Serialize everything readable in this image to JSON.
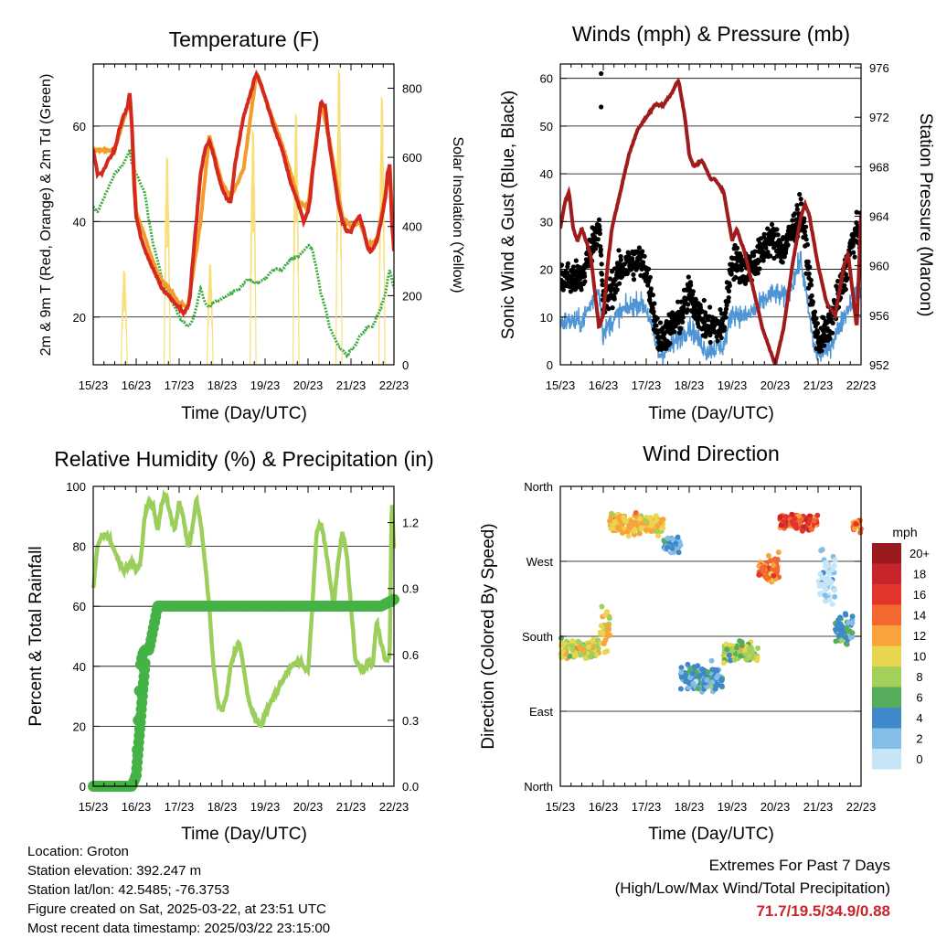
{
  "x_ticks": [
    "15/23",
    "16/23",
    "17/23",
    "18/23",
    "19/23",
    "20/23",
    "21/23",
    "22/23"
  ],
  "x_title": "Time (Day/UTC)",
  "colors": {
    "temp2m": "#d42a1e",
    "temp9m": "#f39b2b",
    "dewpoint": "#3daa3d",
    "solar": "#f7e07a",
    "wind": "#4f94d4",
    "gust": "#000000",
    "pressure": "#a01c1c",
    "rh": "#9bce5b",
    "precip": "#44b244",
    "extreme": "#c8242b"
  },
  "chart_data": [
    {
      "type": "line",
      "title": "Temperature (F)",
      "xlabel": "Time (Day/UTC)",
      "ylabel": "2m & 9m T (Red, Orange) & 2m Td (Green)",
      "ylabel_right": "Solar Insolation (Yellow)",
      "ylim": [
        10,
        73
      ],
      "ylim_right": [
        0,
        870
      ],
      "yticks": [
        20,
        40,
        60
      ],
      "yticks_right": [
        0,
        200,
        400,
        600,
        800
      ],
      "x_range_days": [
        0,
        7
      ],
      "series": [
        {
          "key": "t2",
          "x": [
            0,
            0.1,
            0.2,
            0.3,
            0.5,
            0.6,
            0.7,
            0.8,
            0.85,
            0.9,
            0.95,
            1.0,
            1.1,
            1.2,
            1.3,
            1.4,
            1.5,
            1.6,
            1.7,
            1.8,
            1.9,
            2.0,
            2.1,
            2.2,
            2.25,
            2.3,
            2.4,
            2.5,
            2.6,
            2.7,
            2.8,
            2.9,
            3.0,
            3.1,
            3.2,
            3.3,
            3.5,
            3.6,
            3.7,
            3.75,
            3.8,
            3.9,
            4.0,
            4.1,
            4.2,
            4.4,
            4.6,
            4.8,
            4.9,
            5.0,
            5.05,
            5.1,
            5.2,
            5.3,
            5.4,
            5.5,
            5.6,
            5.7,
            5.8,
            5.9,
            6.0,
            6.1,
            6.2,
            6.3,
            6.4,
            6.5,
            6.6,
            6.7,
            6.8,
            6.85,
            6.9,
            6.95,
            7.0
          ],
          "y": [
            55,
            50,
            50,
            52,
            55,
            59,
            62,
            64,
            67,
            60,
            48,
            41,
            37,
            34,
            32,
            30,
            28,
            26,
            25,
            24,
            23,
            22,
            21,
            22,
            24,
            30,
            40,
            50,
            55,
            57,
            54,
            50,
            47,
            45,
            44,
            52,
            62,
            65,
            68,
            70,
            71,
            69,
            66,
            63,
            60,
            55,
            48,
            43,
            40,
            42,
            45,
            50,
            57,
            65,
            64,
            56,
            50,
            44,
            40,
            38,
            38,
            40,
            41,
            38,
            34,
            34,
            36,
            40,
            45,
            50,
            52,
            40,
            34
          ]
        },
        {
          "key": "t9",
          "x": [
            0,
            0.5,
            0.8,
            0.85,
            0.9,
            1.0,
            1.5,
            2.0,
            2.2,
            2.5,
            2.7,
            3.0,
            3.2,
            3.5,
            3.8,
            4.0,
            4.4,
            4.8,
            5.0,
            5.3,
            5.5,
            5.8,
            6.0,
            6.2,
            6.4,
            6.6,
            6.8,
            6.9,
            7.0
          ],
          "y": [
            55,
            55,
            64,
            67,
            60,
            42,
            29,
            23,
            22,
            40,
            58,
            48,
            45,
            51,
            71,
            66,
            56,
            44,
            43,
            65,
            57,
            41,
            39,
            40,
            35,
            36,
            46,
            52,
            35
          ]
        },
        {
          "key": "td",
          "x": [
            0,
            0.1,
            0.2,
            0.3,
            0.5,
            0.7,
            0.8,
            0.85,
            0.9,
            1.0,
            1.1,
            1.2,
            1.3,
            1.4,
            1.5,
            1.6,
            1.7,
            1.8,
            1.9,
            2.0,
            2.1,
            2.2,
            2.3,
            2.4,
            2.5,
            2.6,
            2.7,
            2.8,
            3.0,
            3.2,
            3.4,
            3.5,
            3.6,
            3.8,
            4.0,
            4.2,
            4.4,
            4.6,
            4.8,
            4.9,
            5.0,
            5.1,
            5.2,
            5.3,
            5.4,
            5.5,
            5.6,
            5.7,
            5.8,
            5.9,
            6.0,
            6.1,
            6.2,
            6.3,
            6.4,
            6.5,
            6.6,
            6.7,
            6.8,
            6.9,
            7.0
          ],
          "y": [
            43,
            42,
            44,
            46,
            50,
            52,
            54,
            55,
            52,
            50,
            48,
            46,
            40,
            35,
            32,
            28,
            26,
            24,
            22,
            20,
            19,
            18,
            19,
            22,
            26,
            23,
            22,
            23,
            24,
            25,
            26,
            27,
            28,
            27,
            28,
            30,
            30,
            32,
            33,
            34,
            35,
            34,
            30,
            25,
            22,
            18,
            16,
            14,
            13,
            12,
            13,
            14,
            16,
            17,
            18,
            18,
            20,
            22,
            25,
            30,
            26
          ]
        }
      ],
      "solar": {
        "days": 7,
        "peaks_wm2": [
          280,
          620,
          300,
          700,
          750,
          880,
          800
        ],
        "center_frac": 0.72,
        "halfwidth_days": 0.07
      }
    },
    {
      "type": "scatter",
      "title": "Winds (mph) & Pressure (mb)",
      "xlabel": "Time (Day/UTC)",
      "ylabel": "Sonic Wind & Gust (Blue, Black)",
      "ylabel_right": "Station Pressure (Maroon)",
      "ylim": [
        0,
        63
      ],
      "ylim_right": [
        952,
        976.3
      ],
      "yticks": [
        0,
        10,
        20,
        30,
        40,
        50,
        60
      ],
      "yticks_right": [
        952,
        956,
        960,
        964,
        968,
        972,
        976
      ],
      "x_range_days": [
        0,
        7
      ],
      "wind_mean": {
        "x": [
          0,
          0.5,
          0.9,
          1.0,
          1.1,
          1.4,
          1.8,
          2.0,
          2.3,
          2.6,
          2.8,
          3.0,
          3.4,
          3.8,
          4.0,
          4.3,
          4.6,
          4.8,
          5.0,
          5.2,
          5.4,
          5.6,
          5.7,
          5.9,
          6.0,
          6.2,
          6.4,
          6.6,
          6.8,
          7.0
        ],
        "y": [
          9,
          9,
          16,
          6,
          8,
          11,
          13,
          12,
          2,
          4,
          6,
          8,
          3,
          4,
          11,
          10,
          12,
          14,
          15,
          14,
          17,
          22,
          16,
          4,
          2,
          3,
          6,
          10,
          14,
          16
        ]
      },
      "gust_mean": {
        "x": [
          0,
          0.5,
          0.9,
          1.0,
          1.1,
          1.4,
          1.8,
          2.0,
          2.3,
          2.6,
          2.8,
          3.0,
          3.4,
          3.8,
          4.0,
          4.3,
          4.6,
          4.8,
          5.0,
          5.2,
          5.4,
          5.6,
          5.7,
          5.9,
          6.0,
          6.2,
          6.4,
          6.6,
          6.8,
          7.0
        ],
        "y": [
          18,
          18,
          30,
          12,
          14,
          20,
          22,
          20,
          5,
          8,
          10,
          15,
          8,
          8,
          22,
          20,
          22,
          26,
          26,
          24,
          28,
          32,
          26,
          10,
          5,
          7,
          12,
          18,
          26,
          28
        ]
      },
      "gust_outliers": [
        {
          "x": 0.95,
          "y": 61
        },
        {
          "x": 0.95,
          "y": 54
        }
      ],
      "pressure": {
        "x": [
          0,
          0.1,
          0.2,
          0.3,
          0.4,
          0.5,
          0.6,
          0.7,
          0.8,
          0.9,
          1.0,
          1.1,
          1.2,
          1.4,
          1.6,
          1.8,
          2.0,
          2.2,
          2.4,
          2.6,
          2.75,
          2.8,
          2.9,
          3.0,
          3.1,
          3.3,
          3.5,
          3.6,
          3.8,
          4.0,
          4.1,
          4.3,
          4.5,
          4.7,
          4.9,
          5.0,
          5.2,
          5.4,
          5.6,
          5.7,
          5.8,
          5.9,
          6.0,
          6.2,
          6.4,
          6.5,
          6.6,
          6.7,
          6.8,
          6.9,
          7.0
        ],
        "y": [
          963,
          965,
          966,
          963,
          962,
          963,
          962,
          961,
          958,
          955,
          956,
          960,
          963,
          966,
          969,
          971,
          972,
          973,
          973,
          974,
          975,
          974,
          972,
          969,
          968,
          968.5,
          967,
          967,
          966,
          962,
          963,
          961,
          958,
          955,
          953,
          952,
          955,
          960,
          964,
          965,
          964,
          962,
          960,
          957,
          956,
          958,
          960,
          961,
          958,
          955,
          964
        ]
      }
    },
    {
      "type": "line",
      "title": "Relative Humidity (%) & Precipitation (in)",
      "xlabel": "Time (Day/UTC)",
      "ylabel": "Percent & Total Rainfall",
      "ylim": [
        0,
        100
      ],
      "ylim_right": [
        0,
        1.365
      ],
      "yticks": [
        0,
        20,
        40,
        60,
        80,
        100
      ],
      "yticks_right": [
        0.0,
        0.3,
        0.6,
        0.9,
        1.2
      ],
      "yticklabels_right": [
        "0.0",
        "0.3",
        "0.6",
        "0.9",
        "1.2"
      ],
      "x_range_days": [
        0,
        7
      ],
      "series": [
        {
          "key": "rh",
          "x": [
            0,
            0.1,
            0.2,
            0.3,
            0.4,
            0.5,
            0.6,
            0.7,
            0.8,
            0.9,
            1.0,
            1.1,
            1.2,
            1.3,
            1.4,
            1.5,
            1.6,
            1.7,
            1.8,
            1.9,
            2.0,
            2.1,
            2.2,
            2.3,
            2.4,
            2.5,
            2.6,
            2.7,
            2.8,
            2.9,
            3.0,
            3.1,
            3.2,
            3.3,
            3.4,
            3.5,
            3.6,
            3.7,
            3.8,
            3.9,
            4.0,
            4.2,
            4.4,
            4.6,
            4.8,
            5.0,
            5.1,
            5.2,
            5.3,
            5.4,
            5.5,
            5.6,
            5.7,
            5.8,
            5.9,
            6.0,
            6.1,
            6.2,
            6.3,
            6.4,
            6.5,
            6.6,
            6.7,
            6.8,
            6.9,
            6.95,
            7.0
          ],
          "y": [
            66,
            80,
            84,
            84,
            82,
            78,
            75,
            72,
            73,
            75,
            72,
            75,
            90,
            95,
            93,
            85,
            95,
            97,
            90,
            85,
            95,
            90,
            80,
            85,
            96,
            88,
            75,
            60,
            40,
            28,
            25,
            30,
            40,
            45,
            48,
            40,
            30,
            25,
            22,
            20,
            24,
            30,
            35,
            40,
            42,
            38,
            60,
            85,
            88,
            80,
            70,
            60,
            75,
            85,
            78,
            60,
            42,
            40,
            38,
            42,
            40,
            55,
            48,
            42,
            44,
            96,
            80
          ]
        },
        {
          "key": "precip",
          "x": [
            0,
            0.5,
            0.8,
            0.9,
            1.0,
            1.05,
            1.1,
            1.15,
            1.2,
            1.3,
            1.5,
            2.0,
            3.0,
            4.0,
            5.0,
            6.0,
            6.7,
            6.8,
            6.9,
            7.0
          ],
          "y": [
            0,
            0,
            0,
            0,
            0.05,
            0.3,
            0.55,
            0.6,
            0.62,
            0.62,
            0.82,
            0.82,
            0.82,
            0.82,
            0.82,
            0.82,
            0.82,
            0.83,
            0.84,
            0.85
          ]
        }
      ]
    },
    {
      "type": "scatter",
      "title": "Wind Direction",
      "xlabel": "Time (Day/UTC)",
      "ylabel": "Direction (Colored By Speed)",
      "ylim": [
        0,
        360
      ],
      "yticks": [
        0,
        90,
        180,
        270,
        360
      ],
      "yticklabels": [
        "North",
        "East",
        "South",
        "West",
        "North"
      ],
      "x_range_days": [
        0,
        7
      ],
      "segments": [
        {
          "x0": 0.0,
          "x1": 0.9,
          "dir": 165,
          "spread": 18,
          "speed": 10
        },
        {
          "x0": 0.9,
          "x1": 1.15,
          "dir": 190,
          "spread": 40,
          "speed": 11
        },
        {
          "x0": 1.15,
          "x1": 2.4,
          "dir": 315,
          "spread": 20,
          "speed": 12
        },
        {
          "x0": 2.4,
          "x1": 2.8,
          "dir": 290,
          "spread": 20,
          "speed": 4
        },
        {
          "x0": 2.8,
          "x1": 3.8,
          "dir": 130,
          "spread": 25,
          "speed": 5
        },
        {
          "x0": 3.8,
          "x1": 4.6,
          "dir": 160,
          "spread": 20,
          "speed": 9
        },
        {
          "x0": 4.6,
          "x1": 5.1,
          "dir": 260,
          "spread": 25,
          "speed": 14
        },
        {
          "x0": 5.1,
          "x1": 6.0,
          "dir": 318,
          "spread": 15,
          "speed": 16
        },
        {
          "x0": 6.0,
          "x1": 6.4,
          "dir": 250,
          "spread": 60,
          "speed": 2
        },
        {
          "x0": 6.4,
          "x1": 6.8,
          "dir": 190,
          "spread": 30,
          "speed": 5
        },
        {
          "x0": 6.8,
          "x1": 7.0,
          "dir": 315,
          "spread": 15,
          "speed": 15
        }
      ],
      "colorbar": {
        "title": "mph",
        "labels": [
          "20+",
          "18",
          "16",
          "14",
          "12",
          "10",
          "8",
          "6",
          "4",
          "2",
          "0"
        ],
        "colors": [
          "#9a1a1d",
          "#c8242b",
          "#e2362d",
          "#f1692e",
          "#f9a33c",
          "#e8d64e",
          "#a3cf5b",
          "#55ad5b",
          "#3f88c9",
          "#84bde6",
          "#c6e6f7"
        ]
      }
    }
  ],
  "info": {
    "location": "Location: Groton",
    "elevation": "Station elevation: 392.247 m",
    "latlon": "Station lat/lon: 42.5485; -76.3753",
    "created": "Figure created on Sat, 2025-03-22, at 23:51 UTC",
    "recent": "Most recent data timestamp: 2025/03/22 23:15:00"
  },
  "extremes": {
    "title": "Extremes For Past 7 Days",
    "subtitle": "(High/Low/Max Wind/Total Precipitation)",
    "values": "71.7/19.5/34.9/0.88"
  }
}
